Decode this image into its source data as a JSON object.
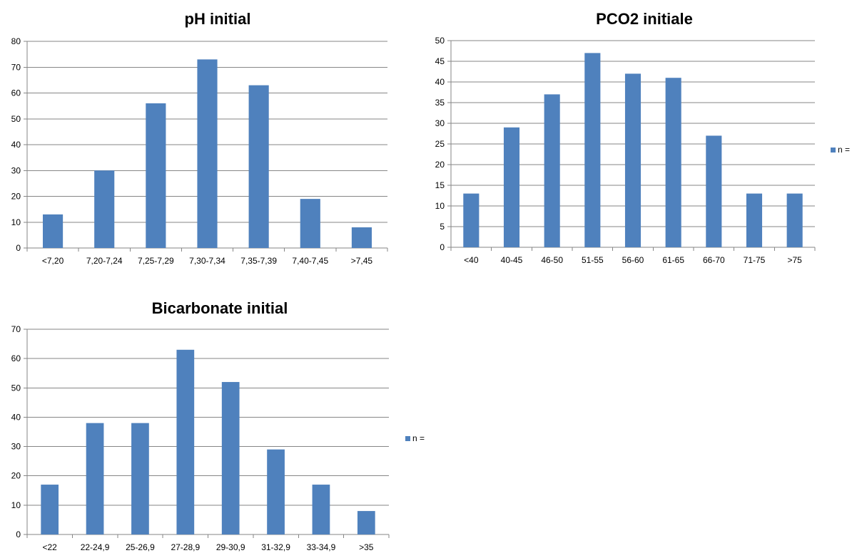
{
  "chart_data": [
    {
      "type": "bar",
      "title": "pH initial",
      "categories": [
        "<7,20",
        "7,20-7,24",
        "7,25-7,29",
        "7,30-7,34",
        "7,35-7,39",
        "7,40-7,45",
        ">7,45"
      ],
      "series": [
        {
          "name": "n =",
          "values": [
            13,
            30,
            56,
            73,
            63,
            19,
            8
          ]
        }
      ],
      "yticks": [
        0,
        10,
        20,
        30,
        40,
        50,
        60,
        70,
        80
      ],
      "ylim": [
        0,
        80
      ],
      "grid": true,
      "legend": "right",
      "color": "#4f81bd"
    },
    {
      "type": "bar",
      "title": "PCO2 initiale",
      "categories": [
        "<40",
        "40-45",
        "46-50",
        "51-55",
        "56-60",
        "61-65",
        "66-70",
        "71-75",
        ">75"
      ],
      "series": [
        {
          "name": "n =",
          "values": [
            13,
            29,
            37,
            47,
            42,
            41,
            27,
            13,
            13
          ]
        }
      ],
      "yticks": [
        0,
        5,
        10,
        15,
        20,
        25,
        30,
        35,
        40,
        45,
        50
      ],
      "ylim": [
        0,
        50
      ],
      "grid": true,
      "legend": "right",
      "color": "#4f81bd"
    },
    {
      "type": "bar",
      "title": "Bicarbonate initial",
      "categories": [
        "<22",
        "22-24,9",
        "25-26,9",
        "27-28,9",
        "29-30,9",
        "31-32,9",
        "33-34,9",
        ">35"
      ],
      "series": [
        {
          "name": "n =",
          "values": [
            17,
            38,
            38,
            63,
            52,
            29,
            17,
            8
          ]
        }
      ],
      "yticks": [
        0,
        10,
        20,
        30,
        40,
        50,
        60,
        70
      ],
      "ylim": [
        0,
        70
      ],
      "grid": true,
      "legend": "right",
      "color": "#4f81bd"
    }
  ]
}
